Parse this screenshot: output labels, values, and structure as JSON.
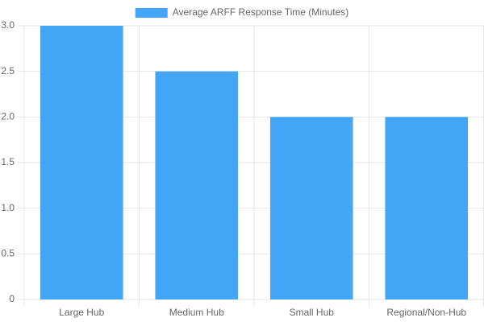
{
  "chart_data": {
    "type": "bar",
    "categories": [
      "Large Hub",
      "Medium Hub",
      "Small Hub",
      "Regional/Non-Hub"
    ],
    "series": [
      {
        "name": "Average ARFF Response Time (Minutes)",
        "color": "#42a5f5",
        "values": [
          3,
          2.5,
          2,
          2
        ]
      }
    ],
    "ylim": [
      0,
      3
    ],
    "yticks": [
      0,
      0.5,
      {
        "value": 1,
        "label": "1.0"
      },
      1.5,
      {
        "value": 2,
        "label": "2.0"
      },
      2.5,
      {
        "value": 3,
        "label": "3.0"
      }
    ],
    "grid": true,
    "legend": "top"
  }
}
